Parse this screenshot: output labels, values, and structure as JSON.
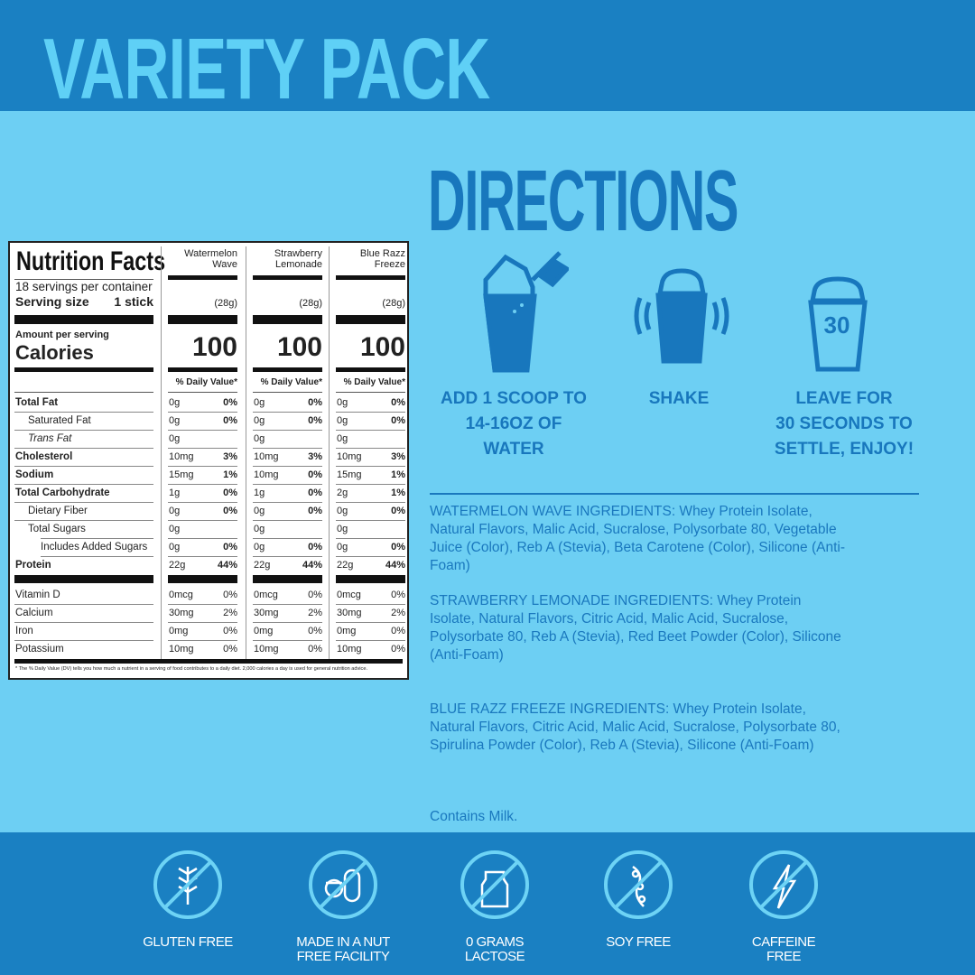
{
  "header": {
    "title": "VARIETY PACK"
  },
  "nutrition": {
    "title": "Nutrition Facts",
    "servings": "18 servings per container",
    "serving_size_label": "Serving size",
    "serving_size_value": "1 stick",
    "amount_per_serving": "Amount per serving",
    "calories_label": "Calories",
    "dv_label": "% Daily Value*",
    "flavors": [
      {
        "name_line1": "Watermelon",
        "name_line2": "Wave",
        "weight": "(28g)",
        "calories": "100"
      },
      {
        "name_line1": "Strawberry",
        "name_line2": "Lemonade",
        "weight": "(28g)",
        "calories": "100"
      },
      {
        "name_line1": "Blue Razz",
        "name_line2": "Freeze",
        "weight": "(28g)",
        "calories": "100"
      }
    ],
    "rows": [
      {
        "label": "Total Fat",
        "bold": true,
        "indent": 0,
        "values": [
          [
            "0g",
            "0%"
          ],
          [
            "0g",
            "0%"
          ],
          [
            "0g",
            "0%"
          ]
        ]
      },
      {
        "label": "Saturated Fat",
        "bold": false,
        "indent": 1,
        "values": [
          [
            "0g",
            "0%"
          ],
          [
            "0g",
            "0%"
          ],
          [
            "0g",
            "0%"
          ]
        ]
      },
      {
        "label": "Trans Fat",
        "bold": false,
        "indent": 1,
        "values": [
          [
            "0g",
            ""
          ],
          [
            "0g",
            ""
          ],
          [
            "0g",
            ""
          ]
        ]
      },
      {
        "label": "Cholesterol",
        "bold": true,
        "indent": 0,
        "values": [
          [
            "10mg",
            "3%"
          ],
          [
            "10mg",
            "3%"
          ],
          [
            "10mg",
            "3%"
          ]
        ]
      },
      {
        "label": "Sodium",
        "bold": true,
        "indent": 0,
        "values": [
          [
            "15mg",
            "1%"
          ],
          [
            "10mg",
            "0%"
          ],
          [
            "15mg",
            "1%"
          ]
        ]
      },
      {
        "label": "Total Carbohydrate",
        "bold": true,
        "indent": 0,
        "values": [
          [
            "1g",
            "0%"
          ],
          [
            "1g",
            "0%"
          ],
          [
            "2g",
            "1%"
          ]
        ]
      },
      {
        "label": "Dietary Fiber",
        "bold": false,
        "indent": 1,
        "values": [
          [
            "0g",
            "0%"
          ],
          [
            "0g",
            "0%"
          ],
          [
            "0g",
            "0%"
          ]
        ]
      },
      {
        "label": "Total Sugars",
        "bold": false,
        "indent": 1,
        "values": [
          [
            "0g",
            ""
          ],
          [
            "0g",
            ""
          ],
          [
            "0g",
            ""
          ]
        ]
      },
      {
        "label": "Includes Added Sugars",
        "bold": false,
        "indent": 2,
        "values": [
          [
            "0g",
            "0%"
          ],
          [
            "0g",
            "0%"
          ],
          [
            "0g",
            "0%"
          ]
        ]
      },
      {
        "label": "Protein",
        "bold": true,
        "indent": 0,
        "values": [
          [
            "22g",
            "44%"
          ],
          [
            "22g",
            "44%"
          ],
          [
            "22g",
            "44%"
          ]
        ]
      }
    ],
    "vitamins": [
      {
        "label": "Vitamin D",
        "values": [
          [
            "0mcg",
            "0%"
          ],
          [
            "0mcg",
            "0%"
          ],
          [
            "0mcg",
            "0%"
          ]
        ]
      },
      {
        "label": "Calcium",
        "values": [
          [
            "30mg",
            "2%"
          ],
          [
            "30mg",
            "2%"
          ],
          [
            "30mg",
            "2%"
          ]
        ]
      },
      {
        "label": "Iron",
        "values": [
          [
            "0mg",
            "0%"
          ],
          [
            "0mg",
            "0%"
          ],
          [
            "0mg",
            "0%"
          ]
        ]
      },
      {
        "label": "Potassium",
        "values": [
          [
            "10mg",
            "0%"
          ],
          [
            "10mg",
            "0%"
          ],
          [
            "10mg",
            "0%"
          ]
        ]
      }
    ],
    "footnote": "* The % Daily Value (DV) tells you how much a nutrient in a serving of food contributes to a daily diet. 2,000 calories a day is used for general nutrition advice."
  },
  "directions": {
    "title": "DIRECTIONS",
    "steps": [
      {
        "icon": "scoop-into-shaker-icon",
        "line1": "ADD 1 SCOOP TO",
        "line2": "14-16OZ OF",
        "line3": "WATER"
      },
      {
        "icon": "shaking-shaker-icon",
        "line1": "SHAKE"
      },
      {
        "icon": "shaker-timer-icon",
        "timer": "30",
        "line1": "LEAVE FOR",
        "line2": "30 SECONDS TO",
        "line3": "SETTLE, ENJOY!"
      }
    ]
  },
  "ingredients": {
    "watermelon": "WATERMELON WAVE INGREDIENTS: Whey Protein Isolate, Natural Flavors, Malic Acid, Sucralose, Polysorbate 80, Vegetable Juice (Color), Reb A (Stevia), Beta Carotene (Color), Silicone (Anti-Foam)",
    "strawberry": "STRAWBERRY LEMONADE INGREDIENTS: Whey Protein Isolate, Natural Flavors, Citric Acid, Malic Acid, Sucralose, Polysorbate 80, Reb A (Stevia), Red Beet Powder (Color), Silicone (Anti-Foam)",
    "bluerazz": "BLUE RAZZ FREEZE INGREDIENTS: Whey Protein Isolate, Natural Flavors, Citric Acid, Malic Acid, Sucralose, Polysorbate 80, Spirulina Powder (Color), Reb A (Stevia), Silicone  (Anti-Foam)",
    "allergen": "Contains Milk."
  },
  "badges": [
    {
      "icon": "no-gluten-icon",
      "line1": "GLUTEN FREE",
      "line2": ""
    },
    {
      "icon": "no-nut-icon",
      "line1": "MADE IN A NUT",
      "line2": "FREE FACILITY"
    },
    {
      "icon": "no-lactose-icon",
      "line1": "0 GRAMS",
      "line2": "LACTOSE"
    },
    {
      "icon": "no-soy-icon",
      "line1": "SOY FREE",
      "line2": ""
    },
    {
      "icon": "no-caffeine-icon",
      "line1": "CAFFEINE",
      "line2": "FREE"
    }
  ],
  "colors": {
    "dark_blue": "#1a80c2",
    "light_blue": "#6dcff3",
    "title_blue": "#5fd0f6",
    "text_blue": "#1877bd"
  }
}
